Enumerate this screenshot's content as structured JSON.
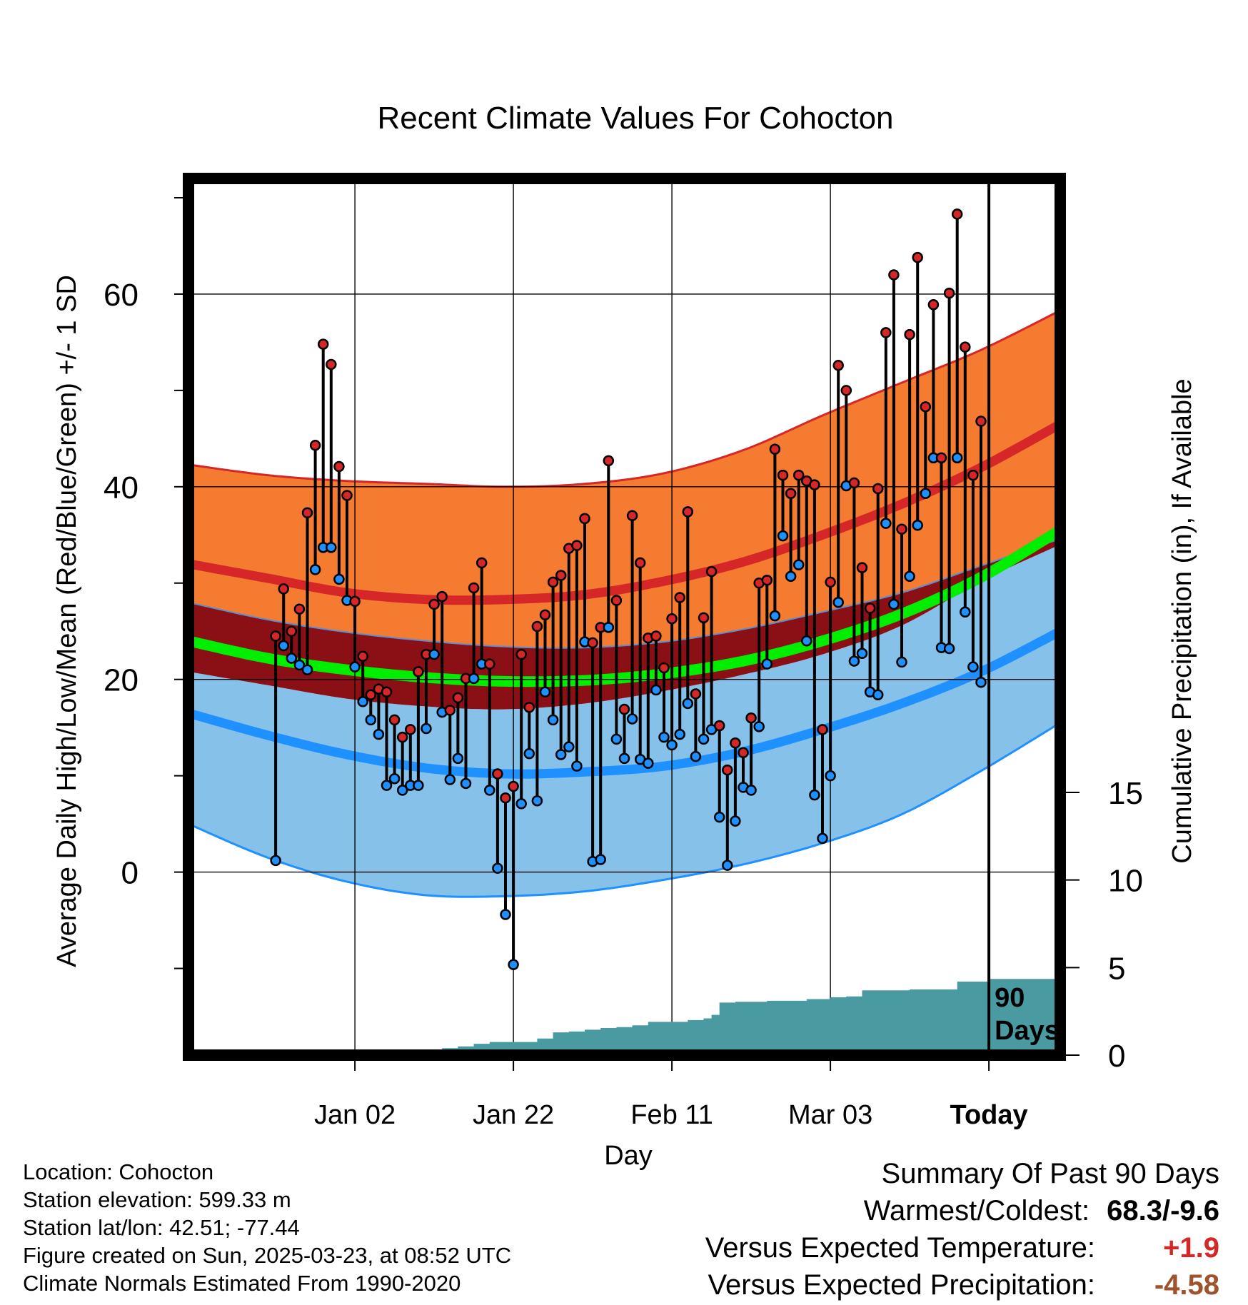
{
  "chart_data": {
    "type": "line",
    "title": "Recent Climate Values For Cohocton",
    "xlabel": "Day",
    "ylabel": "Average Daily High/Low/Mean (Red/Blue/Green) +/- 1 SD",
    "y2label": "Cumulative Precipitation (in), If Available",
    "x_range_days": [
      -101,
      9
    ],
    "ylim": [
      -19,
      72
    ],
    "y_ticks": [
      0,
      20,
      40,
      60
    ],
    "y2_ticks": [
      0,
      5,
      10,
      15
    ],
    "y2_range": [
      0,
      15
    ],
    "x_ticks": [
      {
        "day": -80,
        "label": "Jan 02"
      },
      {
        "day": -60,
        "label": "Jan 22"
      },
      {
        "day": -40,
        "label": "Feb 11"
      },
      {
        "day": -20,
        "label": "Mar 03"
      },
      {
        "day": 0,
        "label": "Today"
      }
    ],
    "today_marker_label": [
      "90",
      "Days"
    ],
    "normals": {
      "days": [
        -101,
        -91,
        -81,
        -71,
        -61,
        -51,
        -41,
        -31,
        -21,
        -11,
        -1,
        9
      ],
      "high_mean": [
        32,
        30.5,
        29,
        28.3,
        28.3,
        28.8,
        30.2,
        32.2,
        35,
        38.2,
        42,
        46.5
      ],
      "high_upper": [
        42.3,
        41.2,
        40.6,
        40.3,
        40,
        40.3,
        41.4,
        43.8,
        47.4,
        50.8,
        54.2,
        58.3
      ],
      "high_lower": [
        28,
        26.2,
        24.9,
        24,
        23.4,
        23.3,
        23.9,
        25.2,
        27,
        29,
        31.8,
        34.6
      ],
      "mean_mean": [
        24,
        22.2,
        21,
        20.2,
        19.8,
        19.9,
        20.6,
        21.9,
        24,
        26.8,
        30.6,
        35.5
      ],
      "low_mean": [
        16.5,
        14.2,
        12.2,
        10.8,
        10.2,
        10.4,
        11,
        12.5,
        14.8,
        17.5,
        20.8,
        25
      ],
      "low_upper": [
        20.8,
        19.4,
        18,
        17.2,
        16.9,
        17.5,
        18.8,
        20.5,
        22.6,
        25.6,
        30.2,
        34
      ],
      "low_lower": [
        5,
        1.5,
        -1,
        -2.4,
        -2.5,
        -2,
        -0.8,
        0.8,
        3,
        6,
        10.5,
        15.5
      ]
    },
    "series": [
      {
        "name": "High",
        "color": "#d62728",
        "values": [
          24.5,
          29.4,
          25,
          27.3,
          37.3,
          44.3,
          54.8,
          52.7,
          42.1,
          39.1,
          28.1,
          22.4,
          18.4,
          19,
          18.7,
          15.8,
          14,
          14.8,
          20.8,
          22.6,
          27.8,
          28.6,
          16.8,
          18.1,
          20.1,
          29.5,
          32.1,
          21.6,
          10.2,
          7.7,
          8.9,
          22.6,
          17.1,
          25.5,
          26.7,
          30.1,
          30.8,
          33.6,
          33.9,
          36.7,
          23.8,
          25.4,
          42.7,
          28.2,
          16.9,
          37,
          32.1,
          24.3,
          24.5,
          21.2,
          26.3,
          28.5,
          37.4,
          18.5,
          26.4,
          31.2,
          15.2,
          10.6,
          13.4,
          12.4,
          16,
          30,
          30.3,
          43.9,
          41.2,
          39.3,
          41.2,
          40.6,
          40.2,
          14.8,
          30.1,
          52.6,
          50,
          40.4,
          31.6,
          27.4,
          39.8,
          56,
          62,
          35.6,
          55.8,
          63.8,
          48.3,
          58.9,
          43,
          60.1,
          68.3,
          54.5,
          41.2,
          46.8
        ]
      },
      {
        "name": "Low",
        "color": "#1e90ff",
        "values": [
          1.2,
          23.5,
          22.2,
          21.5,
          21,
          31.4,
          33.7,
          33.7,
          30.4,
          28.2,
          21.3,
          17.7,
          15.8,
          14.3,
          9,
          9.7,
          8.5,
          9,
          9,
          14.9,
          22.6,
          16.6,
          9.6,
          11.8,
          9.2,
          20.1,
          21.6,
          8.5,
          0.4,
          -4.4,
          -9.6,
          7.1,
          12.3,
          7.4,
          18.7,
          15.8,
          12.2,
          13,
          11,
          23.9,
          1.1,
          1.3,
          25.4,
          13.8,
          11.8,
          15.9,
          11.7,
          11.3,
          18.9,
          14,
          13.2,
          14.3,
          17.5,
          12,
          13.8,
          14.8,
          5.7,
          0.7,
          5.3,
          8.8,
          8.5,
          15.1,
          21.6,
          26.6,
          34.9,
          30.7,
          31.9,
          24,
          8,
          3.5,
          10,
          28,
          40.1,
          21.9,
          22.7,
          18.7,
          18.4,
          36.2,
          27.8,
          21.8,
          30.7,
          36,
          39.3,
          43,
          23.3,
          23.2,
          43,
          27,
          21.3,
          19.7
        ]
      }
    ],
    "precip": {
      "days": [
        -90,
        -81,
        -80,
        -76,
        -72,
        -69,
        -67,
        -65,
        -63,
        -61,
        -57,
        -55,
        -53,
        -51,
        -49,
        -47,
        -45,
        -43,
        -40,
        -38,
        -36,
        -35,
        -34,
        -32,
        -28,
        -25,
        -23,
        -20,
        -18,
        -16,
        -10,
        -7,
        -4,
        0,
        9
      ],
      "values": [
        0,
        0,
        0.15,
        0.2,
        0.25,
        0.4,
        0.5,
        0.65,
        0.75,
        0.75,
        0.95,
        1.3,
        1.35,
        1.45,
        1.55,
        1.6,
        1.7,
        1.9,
        1.9,
        2,
        2.1,
        2.3,
        3,
        3.05,
        3.1,
        3.1,
        3.2,
        3.3,
        3.35,
        3.7,
        3.75,
        3.75,
        4.2,
        4.35,
        4.35
      ]
    }
  },
  "info": {
    "location": "Location: Cohocton",
    "elevation": "Station elevation: 599.33 m",
    "latlon": "Station lat/lon: 42.51; -77.44",
    "created": "Figure created on Sun, 2025-03-23, at 08:52 UTC",
    "normals": "Climate Normals Estimated From 1990-2020"
  },
  "summary": {
    "title": "Summary Of Past 90 Days",
    "warmest_label": "Warmest/Coldest:",
    "warmest_value": "68.3/-9.6",
    "temp_label": "Versus Expected Temperature:",
    "temp_value": "+1.9",
    "temp_color": "#d62728",
    "precip_label": "Versus Expected Precipitation:",
    "precip_value": "-4.58",
    "precip_color": "#a0522d"
  }
}
